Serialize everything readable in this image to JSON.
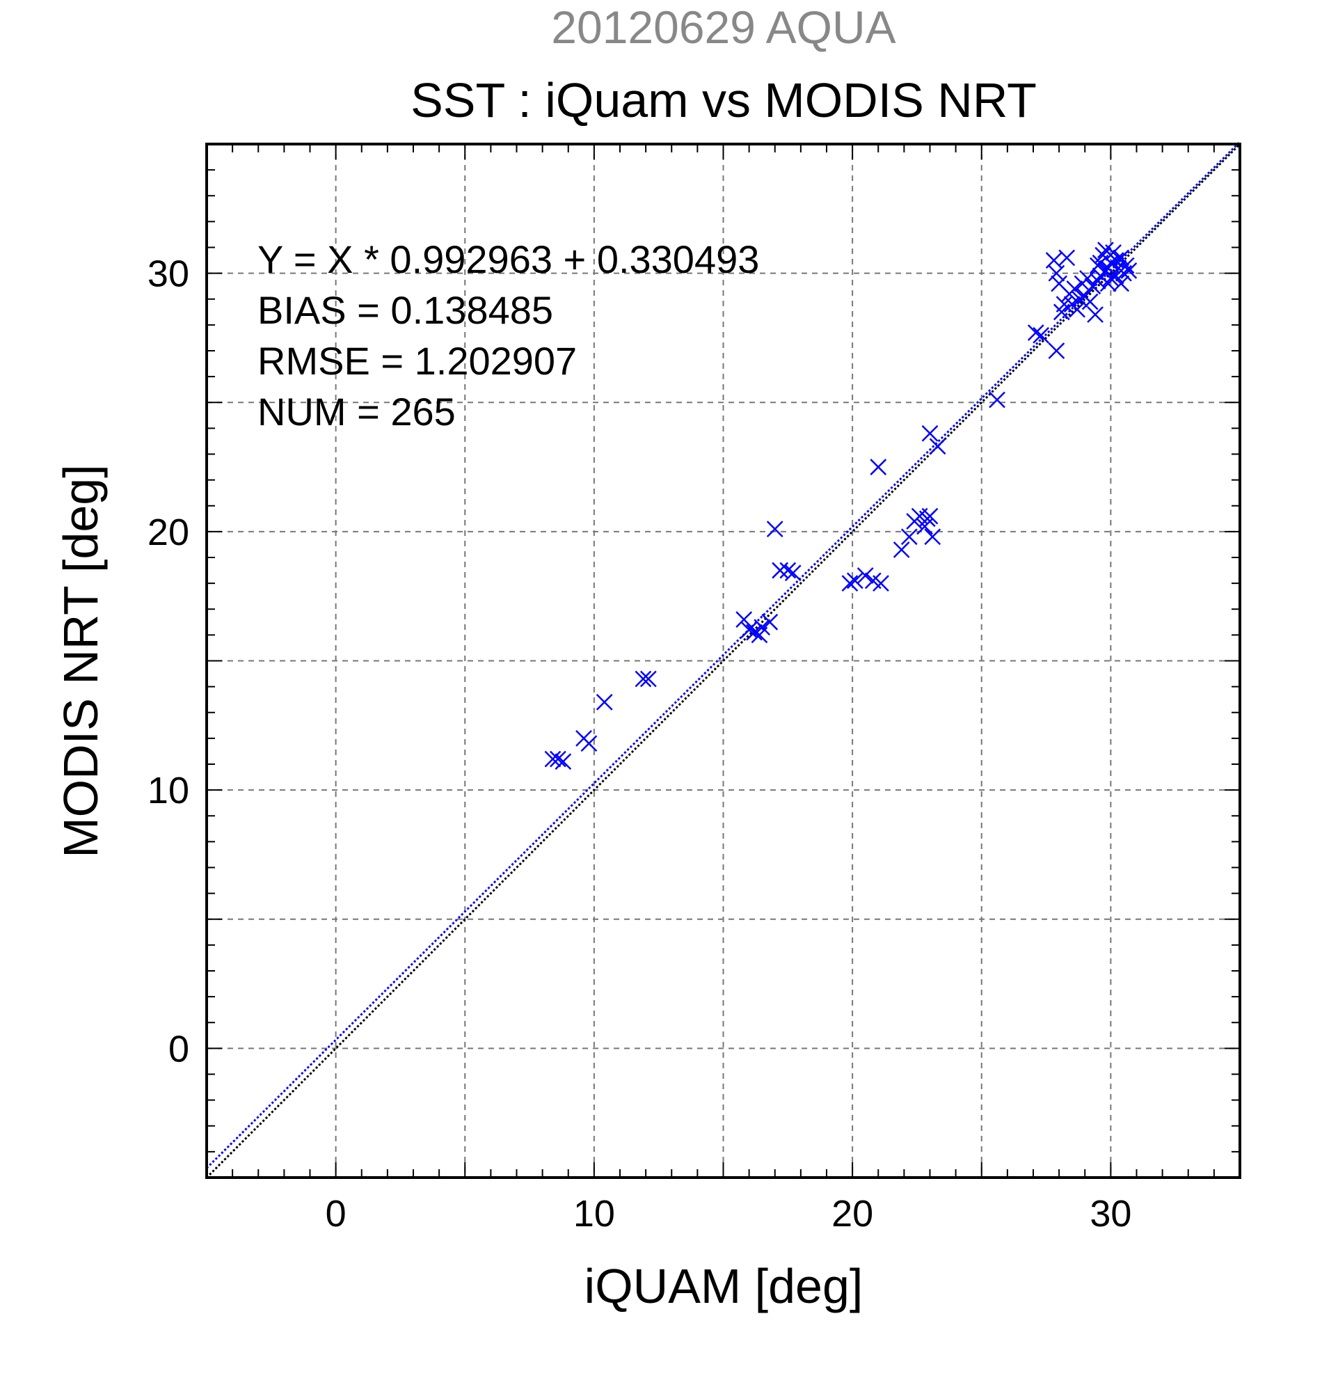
{
  "chart_data": {
    "type": "scatter",
    "title": "SST : iQuam vs MODIS NRT",
    "subtitle": "20120629 AQUA",
    "xlabel": "iQUAM [deg]",
    "ylabel": "MODIS NRT [deg]",
    "xlim": [
      -5,
      35
    ],
    "ylim": [
      -5,
      35
    ],
    "xticks": [
      0,
      10,
      20,
      30
    ],
    "yticks": [
      0,
      10,
      20,
      30
    ],
    "grid": true,
    "stats": [
      "Y = X * 0.992963 + 0.330493",
      "BIAS = 0.138485",
      "RMSE = 1.202907",
      "NUM = 265"
    ],
    "fit_line": {
      "slope": 0.992963,
      "intercept": 0.330493,
      "color": "#0000ff"
    },
    "identity_line": {
      "slope": 1,
      "intercept": 0,
      "color": "#000000"
    },
    "marker_color": "#0000ff",
    "points": [
      [
        8.4,
        11.2
      ],
      [
        8.6,
        11.2
      ],
      [
        8.8,
        11.1
      ],
      [
        9.6,
        12.0
      ],
      [
        9.8,
        11.8
      ],
      [
        10.4,
        13.4
      ],
      [
        11.9,
        14.3
      ],
      [
        12.1,
        14.3
      ],
      [
        15.8,
        16.6
      ],
      [
        16.0,
        16.2
      ],
      [
        16.2,
        16.1
      ],
      [
        16.4,
        16.0
      ],
      [
        16.5,
        16.3
      ],
      [
        16.8,
        16.5
      ],
      [
        17.0,
        20.1
      ],
      [
        17.2,
        18.5
      ],
      [
        17.5,
        18.5
      ],
      [
        17.7,
        18.4
      ],
      [
        19.9,
        18.0
      ],
      [
        20.1,
        18.1
      ],
      [
        20.5,
        18.3
      ],
      [
        20.8,
        18.1
      ],
      [
        21.1,
        18.0
      ],
      [
        21.0,
        22.5
      ],
      [
        21.9,
        19.3
      ],
      [
        22.2,
        19.8
      ],
      [
        22.4,
        20.4
      ],
      [
        22.6,
        20.6
      ],
      [
        22.8,
        20.2
      ],
      [
        22.9,
        20.5
      ],
      [
        23.0,
        20.6
      ],
      [
        23.1,
        19.8
      ],
      [
        23.0,
        23.8
      ],
      [
        23.3,
        23.3
      ],
      [
        25.6,
        25.1
      ],
      [
        27.1,
        27.7
      ],
      [
        27.3,
        27.6
      ],
      [
        27.9,
        27.0
      ],
      [
        27.8,
        30.5
      ],
      [
        27.9,
        30.0
      ],
      [
        28.0,
        29.6
      ],
      [
        28.1,
        28.5
      ],
      [
        28.2,
        28.8
      ],
      [
        28.3,
        30.6
      ],
      [
        28.4,
        29.2
      ],
      [
        28.5,
        28.8
      ],
      [
        28.6,
        29.4
      ],
      [
        28.7,
        28.6
      ],
      [
        28.8,
        29.0
      ],
      [
        28.9,
        29.6
      ],
      [
        29.0,
        29.1
      ],
      [
        29.1,
        29.8
      ],
      [
        29.2,
        28.9
      ],
      [
        29.3,
        29.5
      ],
      [
        29.4,
        28.4
      ],
      [
        29.5,
        30.3
      ],
      [
        29.6,
        29.9
      ],
      [
        29.7,
        30.7
      ],
      [
        29.8,
        30.1
      ],
      [
        29.9,
        29.6
      ],
      [
        30.0,
        30.4
      ],
      [
        30.1,
        30.8
      ],
      [
        30.2,
        29.9
      ],
      [
        30.3,
        30.2
      ],
      [
        30.4,
        30.6
      ],
      [
        30.5,
        30.0
      ],
      [
        30.6,
        30.3
      ],
      [
        30.7,
        30.1
      ],
      [
        29.6,
        30.4
      ],
      [
        29.8,
        30.9
      ],
      [
        30.0,
        29.8
      ],
      [
        30.2,
        30.5
      ],
      [
        30.4,
        29.6
      ],
      [
        29.5,
        29.7
      ],
      [
        29.9,
        30.2
      ]
    ]
  }
}
